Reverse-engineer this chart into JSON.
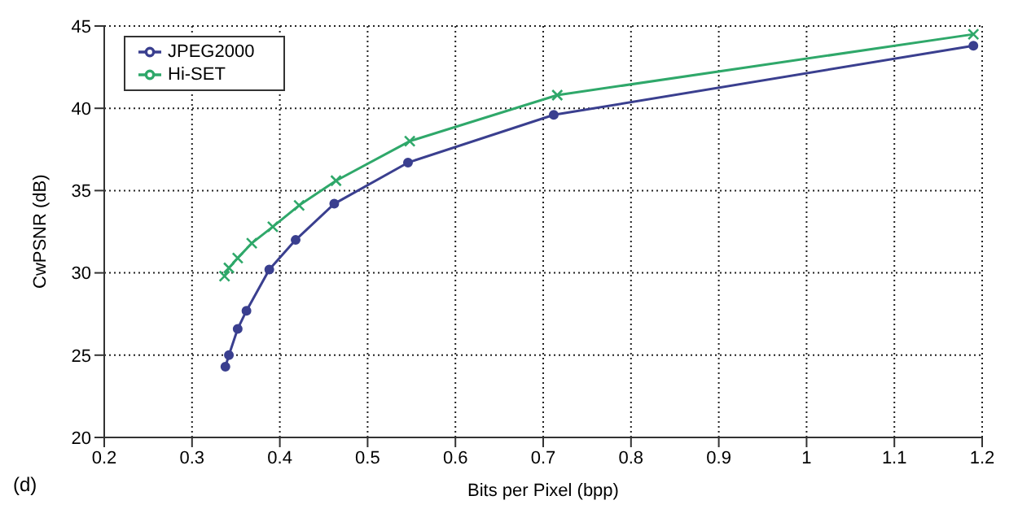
{
  "chart_data": {
    "type": "line",
    "xlabel": "Bits per Pixel (bpp)",
    "ylabel": "CwPSNR (dB)",
    "annotations": [
      "(d)"
    ],
    "xlim": [
      0.2,
      1.2
    ],
    "xticks": [
      0.2,
      0.3,
      0.4,
      0.5,
      0.6,
      0.7,
      0.8,
      0.9,
      1,
      1.1,
      1.2
    ],
    "ylim": [
      20,
      45
    ],
    "yticks": [
      20,
      25,
      30,
      35,
      40,
      45
    ],
    "grid": true,
    "legend": "top left",
    "series": [
      {
        "name": "JPEG2000",
        "color": "#3a3f8f",
        "marker": "circle",
        "x": [
          0.338,
          0.342,
          0.352,
          0.362,
          0.388,
          0.418,
          0.462,
          0.546,
          0.712,
          1.19
        ],
        "values": [
          24.3,
          25.0,
          26.6,
          27.7,
          30.2,
          32.0,
          34.2,
          36.7,
          39.6,
          43.8
        ]
      },
      {
        "name": "Hi-SET",
        "color": "#2fa86a",
        "marker": "cross",
        "x": [
          0.337,
          0.342,
          0.352,
          0.368,
          0.392,
          0.422,
          0.464,
          0.548,
          0.716,
          1.19
        ],
        "values": [
          29.8,
          30.3,
          30.9,
          31.8,
          32.8,
          34.1,
          35.6,
          38.0,
          40.8,
          44.5
        ]
      }
    ]
  }
}
